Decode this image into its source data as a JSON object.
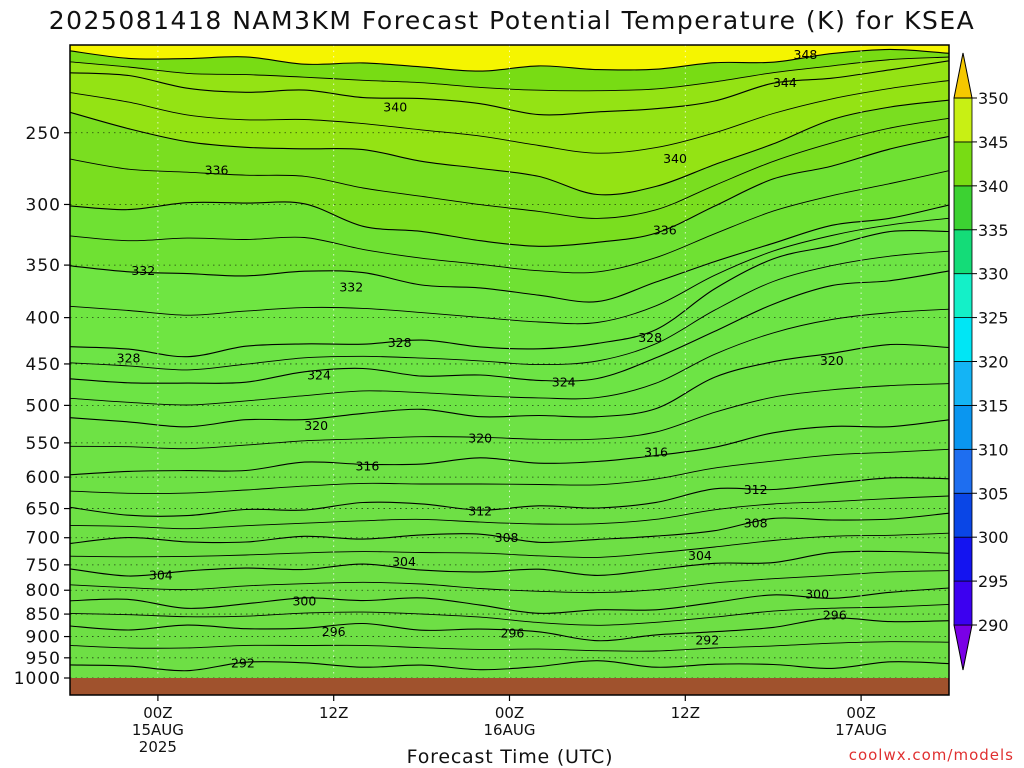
{
  "chart_data": {
    "type": "heatmap",
    "title": "2025081418 NAM3KM Forecast Potential Temperature (K) for KSEA",
    "xlabel": "Forecast Time (UTC)",
    "ylabel": "",
    "y_scale": "log",
    "y_reversed": true,
    "ylim": [
      1000,
      200
    ],
    "y_ticks": [
      250,
      300,
      350,
      400,
      450,
      500,
      550,
      600,
      650,
      700,
      750,
      800,
      850,
      900,
      950,
      1000
    ],
    "x_ticks": [
      {
        "label": "00Z",
        "sub": "15AUG",
        "sub2": "2025",
        "t": 6
      },
      {
        "label": "12Z",
        "sub": "",
        "sub2": "",
        "t": 18
      },
      {
        "label": "00Z",
        "sub": "16AUG",
        "sub2": "",
        "t": 30
      },
      {
        "label": "12Z",
        "sub": "",
        "sub2": "",
        "t": 42
      },
      {
        "label": "00Z",
        "sub": "17AUG",
        "sub2": "",
        "t": 54
      }
    ],
    "xlim": [
      0,
      60
    ],
    "grid": true,
    "colorbar": {
      "levels": [
        290,
        295,
        300,
        305,
        310,
        315,
        320,
        325,
        330,
        335,
        340,
        345,
        350
      ],
      "labels": [
        "290",
        "295",
        "300",
        "305",
        "310",
        "315",
        "320",
        "325",
        "330",
        "335",
        "340",
        "345",
        "350"
      ],
      "colors": [
        "#7a00e6",
        "#3c00f0",
        "#1414f0",
        "#0a46e6",
        "#1e6ef0",
        "#0a96f0",
        "#14b4f5",
        "#00e6f5",
        "#14f0c8",
        "#14dc78",
        "#3cd232",
        "#78dc14",
        "#c8f014",
        "#f5f500",
        "#f5c800"
      ]
    },
    "contours": [
      {
        "value": 292,
        "label": "292",
        "p": [
          968,
          971,
          972,
          968,
          966,
          968,
          972,
          972,
          970,
          967,
          968,
          966,
          966,
          968,
          969,
          966
        ]
      },
      {
        "value": 296,
        "label": "296",
        "p": [
          875,
          881,
          884,
          880,
          876,
          874,
          880,
          888,
          895,
          901,
          898,
          888,
          877,
          868,
          862,
          860
        ]
      },
      {
        "value": 300,
        "label": "300",
        "p": [
          822,
          826,
          830,
          826,
          820,
          818,
          822,
          830,
          840,
          846,
          840,
          826,
          815,
          808,
          804,
          800
        ]
      },
      {
        "value": 304,
        "label": "304",
        "p": [
          760,
          763,
          765,
          760,
          756,
          753,
          755,
          760,
          766,
          768,
          760,
          748,
          738,
          732,
          728,
          725
        ]
      },
      {
        "value": 308,
        "label": "308",
        "p": [
          705,
          707,
          708,
          704,
          700,
          697,
          697,
          700,
          703,
          704,
          696,
          684,
          674,
          668,
          664,
          660
        ]
      },
      {
        "value": 312,
        "label": "312",
        "p": [
          655,
          657,
          659,
          654,
          649,
          645,
          644,
          646,
          648,
          648,
          640,
          624,
          614,
          608,
          604,
          600
        ]
      },
      {
        "value": 316,
        "label": "316",
        "p": [
          590,
          592,
          593,
          588,
          582,
          578,
          576,
          576,
          578,
          578,
          570,
          550,
          538,
          530,
          526,
          522
        ]
      },
      {
        "value": 320,
        "label": "320",
        "p": [
          520,
          523,
          526,
          521,
          514,
          510,
          510,
          512,
          514,
          514,
          500,
          470,
          448,
          436,
          430,
          428
        ]
      },
      {
        "value": 324,
        "label": "324",
        "p": [
          466,
          470,
          474,
          468,
          462,
          458,
          460,
          464,
          468,
          466,
          448,
          412,
          385,
          370,
          362,
          358
        ]
      },
      {
        "value": 328,
        "label": "328",
        "p": [
          430,
          435,
          440,
          434,
          427,
          424,
          426,
          430,
          434,
          430,
          408,
          372,
          346,
          332,
          324,
          320
        ]
      },
      {
        "value": 332,
        "label": "332",
        "p": [
          352,
          355,
          360,
          357,
          354,
          360,
          367,
          372,
          378,
          380,
          368,
          348,
          330,
          318,
          308,
          300
        ]
      },
      {
        "value": 336,
        "label": "336",
        "p": [
          300,
          305,
          296,
          300,
          302,
          315,
          322,
          328,
          332,
          334,
          322,
          300,
          282,
          270,
          262,
          254
        ]
      },
      {
        "value": 340,
        "label": "340",
        "p": [
          238,
          246,
          258,
          260,
          258,
          262,
          268,
          274,
          282,
          290,
          286,
          272,
          256,
          244,
          234,
          228
        ]
      },
      {
        "value": 344,
        "label": "344",
        "p": [
          214,
          218,
          222,
          224,
          226,
          228,
          230,
          233,
          236,
          238,
          236,
          230,
          222,
          216,
          212,
          210
        ]
      },
      {
        "value": 348,
        "label": "348",
        "p": [
          204,
          205,
          207,
          208,
          209,
          210,
          211,
          212,
          213,
          213,
          212,
          210,
          207,
          205,
          204,
          203
        ]
      }
    ],
    "contour_labels": [
      {
        "text": "292",
        "t": 11.8,
        "p": 962
      },
      {
        "text": "296",
        "t": 18,
        "p": 889
      },
      {
        "text": "296",
        "t": 30.2,
        "p": 892
      },
      {
        "text": "292",
        "t": 43.5,
        "p": 908
      },
      {
        "text": "296",
        "t": 52.2,
        "p": 852
      },
      {
        "text": "300",
        "t": 16,
        "p": 822
      },
      {
        "text": "300",
        "t": 51,
        "p": 808
      },
      {
        "text": "304",
        "t": 6.2,
        "p": 770
      },
      {
        "text": "304",
        "t": 22.8,
        "p": 744
      },
      {
        "text": "304",
        "t": 43,
        "p": 732
      },
      {
        "text": "308",
        "t": 29.8,
        "p": 700
      },
      {
        "text": "308",
        "t": 46.8,
        "p": 674
      },
      {
        "text": "312",
        "t": 28,
        "p": 654
      },
      {
        "text": "312",
        "t": 46.8,
        "p": 619
      },
      {
        "text": "316",
        "t": 20.3,
        "p": 583
      },
      {
        "text": "316",
        "t": 40,
        "p": 563
      },
      {
        "text": "320",
        "t": 16.8,
        "p": 526
      },
      {
        "text": "320",
        "t": 28,
        "p": 543
      },
      {
        "text": "320",
        "t": 52,
        "p": 446
      },
      {
        "text": "324",
        "t": 17,
        "p": 463
      },
      {
        "text": "324",
        "t": 33.7,
        "p": 471
      },
      {
        "text": "328",
        "t": 4,
        "p": 443
      },
      {
        "text": "328",
        "t": 22.5,
        "p": 426
      },
      {
        "text": "328",
        "t": 39.6,
        "p": 421
      },
      {
        "text": "332",
        "t": 5,
        "p": 355
      },
      {
        "text": "332",
        "t": 19.2,
        "p": 370
      },
      {
        "text": "336",
        "t": 10,
        "p": 275
      },
      {
        "text": "336",
        "t": 40.6,
        "p": 320
      },
      {
        "text": "340",
        "t": 22.2,
        "p": 234
      },
      {
        "text": "340",
        "t": 41.3,
        "p": 267
      },
      {
        "text": "344",
        "t": 48.8,
        "p": 220
      },
      {
        "text": "348",
        "t": 50.2,
        "p": 205
      }
    ]
  },
  "credit": "coolwx.com/models"
}
